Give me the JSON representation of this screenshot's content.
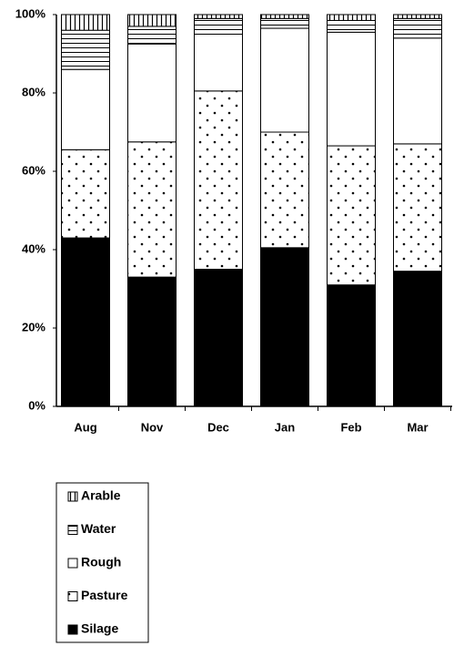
{
  "chart_data": {
    "type": "bar",
    "stacked": true,
    "categories": [
      "Aug",
      "Nov",
      "Dec",
      "Jan",
      "Feb",
      "Mar"
    ],
    "series": [
      {
        "name": "Silage",
        "color": "#000000",
        "values": [
          43,
          33,
          35,
          40.5,
          31,
          34.5
        ]
      },
      {
        "name": "Pasture",
        "color": "#ffffff",
        "values": [
          22.5,
          34.5,
          45.5,
          29.5,
          35.5,
          32.5
        ]
      },
      {
        "name": "Rough",
        "color": "#ffffff",
        "values": [
          20.5,
          25,
          14.5,
          26.5,
          29,
          27
        ]
      },
      {
        "name": "Water",
        "color": "#ffffff",
        "values": [
          10,
          4.5,
          4,
          2.5,
          3,
          5
        ]
      },
      {
        "name": "Arable",
        "color": "#ffffff",
        "values": [
          4,
          3,
          1,
          1,
          1.5,
          1
        ]
      }
    ],
    "ylim": [
      0,
      100
    ],
    "yticks": [
      {
        "value": 0,
        "label": "0%"
      },
      {
        "value": 20,
        "label": "20%"
      },
      {
        "value": 40,
        "label": "40%"
      },
      {
        "value": 60,
        "label": "60%"
      },
      {
        "value": 80,
        "label": "80%"
      },
      {
        "value": 100,
        "label": "100%"
      }
    ]
  }
}
